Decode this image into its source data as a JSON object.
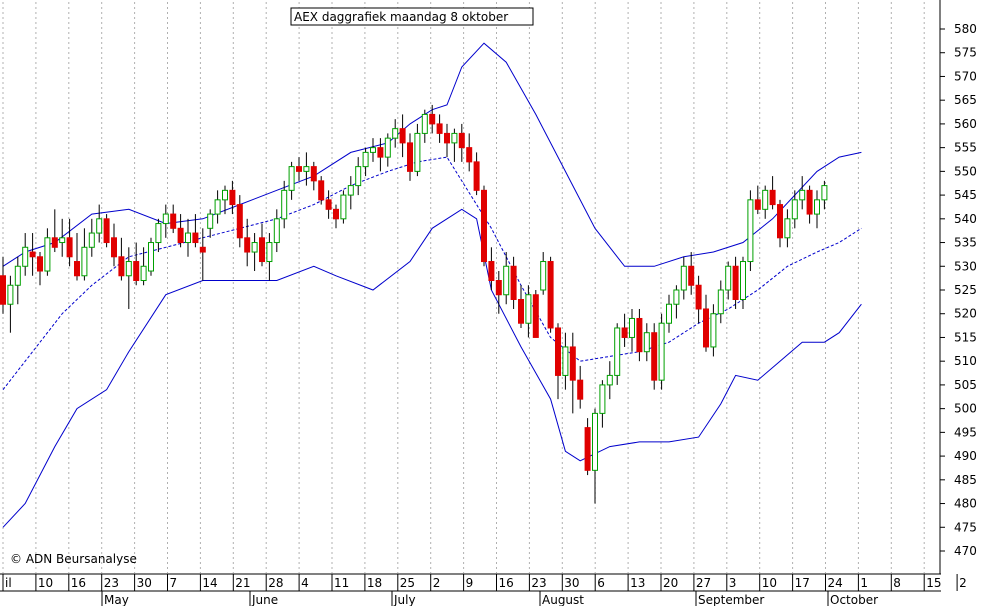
{
  "chart_data": {
    "type": "candlestick",
    "title": "AEX daggrafiek maandag 8 oktober",
    "copyright": "© ADN Beursanalyse",
    "ylim": [
      465,
      585
    ],
    "yticks": [
      470,
      475,
      480,
      485,
      490,
      495,
      500,
      505,
      510,
      515,
      520,
      525,
      530,
      535,
      540,
      545,
      550,
      555,
      560,
      565,
      570,
      575,
      580
    ],
    "day_labels": [
      "il",
      "10",
      "16",
      "23",
      "30",
      "7",
      "14",
      "21",
      "28",
      "4",
      "11",
      "18",
      "25",
      "2",
      "9",
      "16",
      "23",
      "30",
      "6",
      "13",
      "20",
      "27",
      "3",
      "10",
      "17",
      "24",
      "1",
      "8",
      "15",
      "2"
    ],
    "month_labels": [
      "May",
      "June",
      "July",
      "August",
      "September",
      "October"
    ],
    "grid": "vertical-dotted",
    "colors": {
      "up": "#00a000",
      "down": "#e00000",
      "band": "#0000cc",
      "axis": "#000000",
      "grid": "#b0b0b0"
    },
    "series": [
      {
        "name": "",
        "kind": "ohlc",
        "values": [
          [
            528,
            532,
            520,
            522
          ],
          [
            522,
            528,
            516,
            526
          ],
          [
            526,
            532,
            522,
            530
          ],
          [
            530,
            537,
            528,
            534
          ],
          [
            533,
            537,
            528,
            532
          ],
          [
            532,
            533,
            526,
            529
          ],
          [
            529,
            538,
            528,
            536
          ],
          [
            536,
            542,
            533,
            534
          ],
          [
            535,
            540,
            532,
            536
          ],
          [
            536,
            540,
            530,
            532
          ],
          [
            531,
            537,
            527,
            528
          ],
          [
            528,
            538,
            527,
            534
          ],
          [
            534,
            540,
            532,
            537
          ],
          [
            537,
            543,
            535,
            540
          ],
          [
            540,
            541,
            534,
            535
          ],
          [
            536,
            539,
            530,
            532
          ],
          [
            532,
            536,
            527,
            528
          ],
          [
            528,
            534,
            521,
            531
          ],
          [
            531,
            535,
            526,
            527
          ],
          [
            527,
            534,
            526,
            530
          ],
          [
            529,
            536,
            528,
            535
          ],
          [
            535,
            540,
            533,
            539
          ],
          [
            539,
            543,
            536,
            541
          ],
          [
            541,
            543,
            537,
            538
          ],
          [
            538,
            541,
            534,
            535
          ],
          [
            535,
            540,
            532,
            537
          ],
          [
            537,
            541,
            534,
            535
          ],
          [
            534,
            538,
            527,
            533
          ],
          [
            538,
            542,
            536,
            541
          ],
          [
            541,
            546,
            539,
            544
          ],
          [
            544,
            547,
            541,
            546
          ],
          [
            546,
            548,
            541,
            543
          ],
          [
            543,
            545,
            534,
            536
          ],
          [
            536,
            540,
            530,
            533
          ],
          [
            533,
            537,
            529,
            535
          ],
          [
            536,
            539,
            530,
            531
          ],
          [
            531,
            537,
            527,
            535
          ],
          [
            535,
            542,
            533,
            540
          ],
          [
            540,
            548,
            538,
            546
          ],
          [
            546,
            552,
            544,
            551
          ],
          [
            551,
            553,
            548,
            550
          ],
          [
            550,
            554,
            547,
            551
          ],
          [
            551,
            552,
            546,
            548
          ],
          [
            548,
            549,
            543,
            544
          ],
          [
            544,
            546,
            540,
            542
          ],
          [
            542,
            543,
            538,
            540
          ],
          [
            540,
            546,
            539,
            545
          ],
          [
            545,
            549,
            542,
            547
          ],
          [
            547,
            553,
            545,
            551
          ],
          [
            551,
            555,
            549,
            554
          ],
          [
            554,
            557,
            552,
            555
          ],
          [
            555,
            557,
            550,
            553
          ],
          [
            553,
            558,
            551,
            557
          ],
          [
            557,
            561,
            555,
            559
          ],
          [
            559,
            562,
            553,
            556
          ],
          [
            556,
            558,
            548,
            550
          ],
          [
            550,
            560,
            549,
            558
          ],
          [
            558,
            563,
            556,
            562
          ],
          [
            562,
            564,
            558,
            560
          ],
          [
            560,
            562,
            556,
            558
          ],
          [
            558,
            560,
            553,
            556
          ],
          [
            556,
            559,
            552,
            558
          ],
          [
            558,
            560,
            552,
            555
          ],
          [
            555,
            558,
            550,
            552
          ],
          [
            552,
            554,
            545,
            546
          ],
          [
            546,
            547,
            530,
            531
          ],
          [
            531,
            534,
            525,
            527
          ],
          [
            527,
            529,
            520,
            524
          ],
          [
            524,
            533,
            522,
            530
          ],
          [
            530,
            532,
            521,
            523
          ],
          [
            523,
            526,
            517,
            518
          ],
          [
            518,
            526,
            515,
            524
          ],
          [
            524,
            525,
            515,
            515
          ],
          [
            525,
            533,
            524,
            531
          ],
          [
            531,
            532,
            516,
            517
          ],
          [
            517,
            518,
            502,
            507
          ],
          [
            507,
            516,
            504,
            513
          ],
          [
            513,
            516,
            499,
            506
          ],
          [
            506,
            509,
            500,
            502
          ],
          [
            496,
            498,
            486,
            487
          ],
          [
            487,
            500,
            480,
            499
          ],
          [
            499,
            506,
            496,
            505
          ],
          [
            505,
            510,
            502,
            507
          ],
          [
            507,
            518,
            505,
            517
          ],
          [
            517,
            520,
            513,
            515
          ],
          [
            515,
            521,
            512,
            519
          ],
          [
            519,
            521,
            510,
            512
          ],
          [
            512,
            518,
            510,
            516
          ],
          [
            516,
            518,
            504,
            506
          ],
          [
            506,
            520,
            504,
            518
          ],
          [
            518,
            524,
            516,
            522
          ],
          [
            522,
            526,
            519,
            525
          ],
          [
            525,
            532,
            523,
            530
          ],
          [
            530,
            533,
            524,
            526
          ],
          [
            526,
            528,
            518,
            521
          ],
          [
            521,
            524,
            512,
            513
          ],
          [
            513,
            522,
            511,
            520
          ],
          [
            520,
            527,
            518,
            525
          ],
          [
            525,
            531,
            523,
            530
          ],
          [
            530,
            532,
            521,
            523
          ],
          [
            523,
            532,
            521,
            531
          ],
          [
            531,
            546,
            529,
            544
          ],
          [
            544,
            547,
            541,
            542
          ],
          [
            542,
            547,
            540,
            546
          ],
          [
            546,
            549,
            542,
            543
          ],
          [
            543,
            544,
            534,
            536
          ],
          [
            536,
            542,
            534,
            540
          ],
          [
            540,
            546,
            538,
            544
          ],
          [
            544,
            549,
            542,
            546
          ],
          [
            546,
            547,
            539,
            541
          ],
          [
            541,
            546,
            538,
            544
          ],
          [
            544,
            548,
            542,
            547
          ]
        ]
      },
      {
        "name": "",
        "kind": "upper-band",
        "values": [
          [
            0,
            530
          ],
          [
            3,
            533
          ],
          [
            7,
            535
          ],
          [
            12,
            541
          ],
          [
            17,
            542
          ],
          [
            22,
            539
          ],
          [
            27,
            540
          ],
          [
            32,
            543
          ],
          [
            37,
            546
          ],
          [
            42,
            549
          ],
          [
            47,
            554
          ],
          [
            52,
            556
          ],
          [
            55,
            560
          ],
          [
            58,
            563
          ],
          [
            60,
            564
          ],
          [
            62,
            572
          ],
          [
            65,
            577
          ],
          [
            68,
            573
          ],
          [
            72,
            562
          ],
          [
            76,
            550
          ],
          [
            80,
            538
          ],
          [
            84,
            530
          ],
          [
            88,
            530
          ],
          [
            92,
            532
          ],
          [
            96,
            533
          ],
          [
            100,
            535
          ],
          [
            104,
            540
          ],
          [
            107,
            545
          ],
          [
            110,
            550
          ],
          [
            113,
            553
          ],
          [
            116,
            554
          ]
        ]
      },
      {
        "name": "",
        "kind": "middle-band",
        "values": [
          [
            0,
            504
          ],
          [
            4,
            512
          ],
          [
            8,
            520
          ],
          [
            12,
            526
          ],
          [
            17,
            532
          ],
          [
            22,
            534
          ],
          [
            27,
            536
          ],
          [
            32,
            538
          ],
          [
            37,
            540
          ],
          [
            42,
            543
          ],
          [
            47,
            547
          ],
          [
            52,
            550
          ],
          [
            56,
            552
          ],
          [
            60,
            553
          ],
          [
            62,
            548
          ],
          [
            66,
            538
          ],
          [
            70,
            526
          ],
          [
            74,
            515
          ],
          [
            78,
            510
          ],
          [
            82,
            511
          ],
          [
            86,
            512
          ],
          [
            90,
            514
          ],
          [
            94,
            518
          ],
          [
            98,
            521
          ],
          [
            102,
            525
          ],
          [
            106,
            530
          ],
          [
            110,
            533
          ],
          [
            113,
            535
          ],
          [
            116,
            538
          ]
        ]
      },
      {
        "name": "",
        "kind": "lower-band",
        "values": [
          [
            0,
            475
          ],
          [
            3,
            480
          ],
          [
            7,
            492
          ],
          [
            10,
            500
          ],
          [
            14,
            504
          ],
          [
            17,
            512
          ],
          [
            22,
            524
          ],
          [
            27,
            527
          ],
          [
            32,
            527
          ],
          [
            37,
            527
          ],
          [
            42,
            530
          ],
          [
            45,
            528
          ],
          [
            50,
            525
          ],
          [
            55,
            531
          ],
          [
            58,
            538
          ],
          [
            62,
            542
          ],
          [
            64,
            540
          ],
          [
            66,
            525
          ],
          [
            70,
            513
          ],
          [
            74,
            502
          ],
          [
            76,
            491
          ],
          [
            78,
            489
          ],
          [
            82,
            492
          ],
          [
            86,
            493
          ],
          [
            90,
            493
          ],
          [
            94,
            494
          ],
          [
            97,
            501
          ],
          [
            99,
            507
          ],
          [
            102,
            506
          ],
          [
            105,
            510
          ],
          [
            108,
            514
          ],
          [
            111,
            514
          ],
          [
            113,
            516
          ],
          [
            116,
            522
          ]
        ]
      }
    ]
  }
}
